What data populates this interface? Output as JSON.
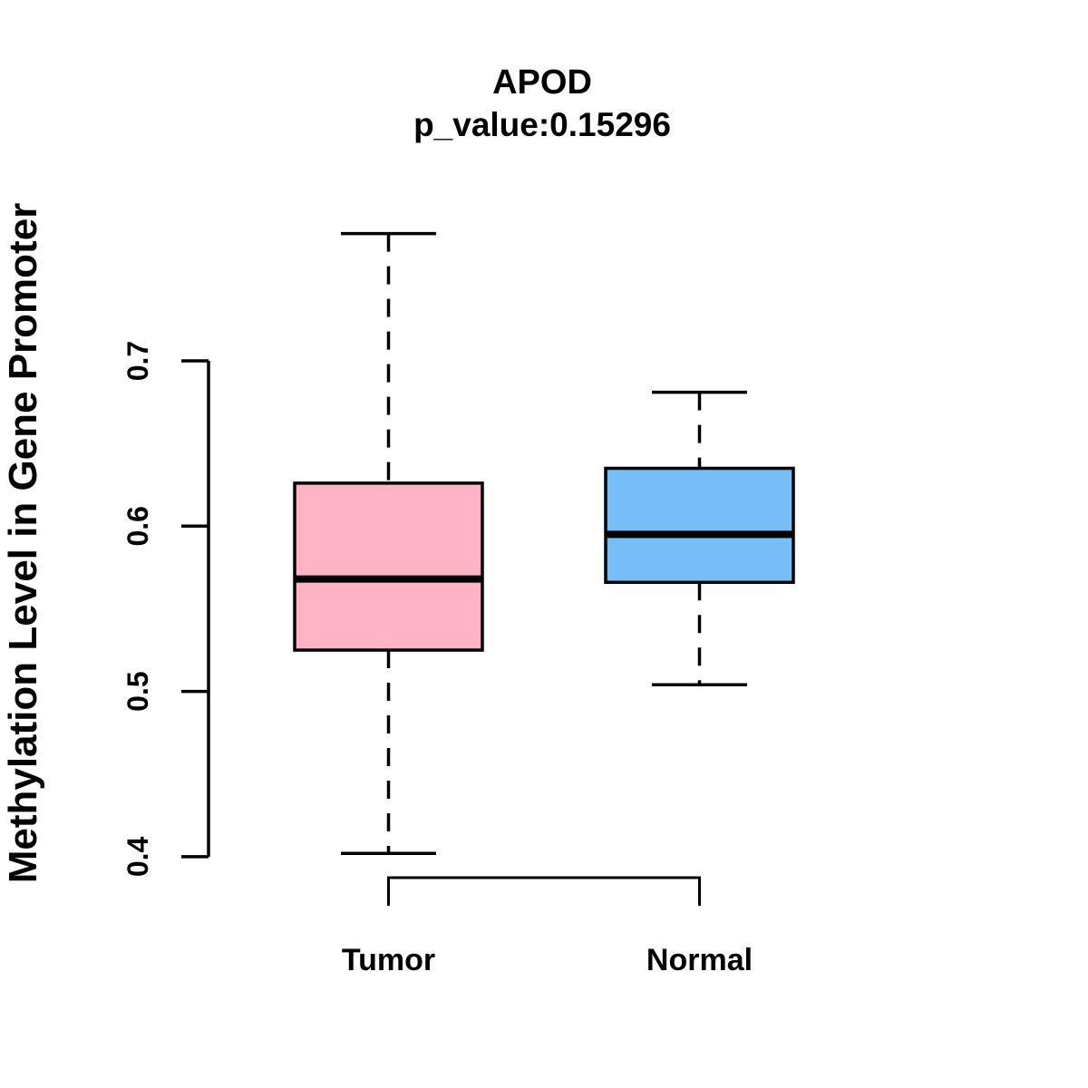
{
  "chart_data": {
    "type": "boxplot",
    "title": "APOD",
    "subtitle": "p_value:0.15296",
    "ylabel": "Methylation Level in Gene Promoter",
    "xlabel": "",
    "yticks": [
      0.4,
      0.5,
      0.6,
      0.7
    ],
    "ytick_labels": [
      "0.4",
      "0.5",
      "0.6",
      "0.7"
    ],
    "ylim": [
      0.37,
      0.79
    ],
    "grid": false,
    "legend_position": "none",
    "background_color": "#FFFFFF",
    "stroke_color": "#000000",
    "categories": [
      "Tumor",
      "Normal"
    ],
    "series": [
      {
        "name": "Tumor",
        "fill_color": "#FFB3C5",
        "whisker_low": 0.402,
        "q1": 0.525,
        "median": 0.568,
        "q3": 0.626,
        "whisker_high": 0.777
      },
      {
        "name": "Normal",
        "fill_color": "#75BEF6",
        "whisker_low": 0.504,
        "q1": 0.566,
        "median": 0.595,
        "q3": 0.635,
        "whisker_high": 0.681
      }
    ]
  }
}
